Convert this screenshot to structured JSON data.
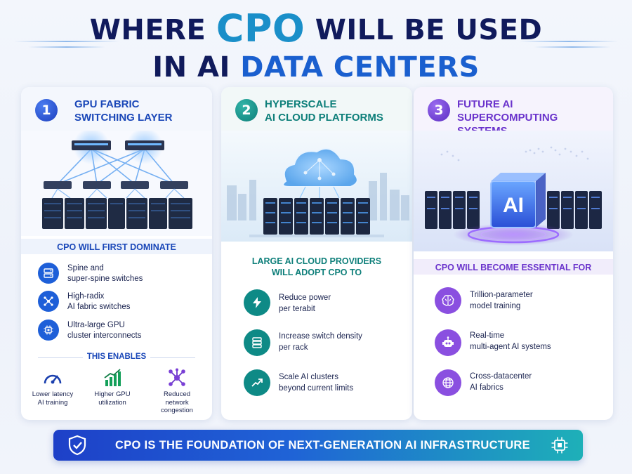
{
  "title": {
    "line1_pre": "WHERE",
    "line1_highlight": "CPO",
    "line1_post": "WILL BE USED",
    "line2_pre": "IN AI",
    "line2_highlight": "DATA CENTERS"
  },
  "colors": {
    "navy": "#101a5c",
    "cpo_teal": "#1a8fc9",
    "blue": "#1a5fcf",
    "teal": "#0e8a86",
    "purple": "#7a3fd6"
  },
  "panels": [
    {
      "number": "1",
      "title_line1": "GPU FABRIC",
      "title_line2": "SWITCHING LAYER",
      "section_title": "CPO WILL FIRST DOMINATE",
      "items": [
        {
          "icon": "server-rack-icon",
          "line1": "Spine and",
          "line2": "super-spine switches"
        },
        {
          "icon": "network-nodes-icon",
          "line1": "High-radix",
          "line2": "AI fabric switches"
        },
        {
          "icon": "chip-icon",
          "line1": "Ultra-large GPU",
          "line2": "cluster interconnects"
        }
      ],
      "enables_title": "THIS ENABLES",
      "enables": [
        {
          "icon": "speedometer-icon",
          "line1": "Lower latency",
          "line2": "AI training",
          "line3": ""
        },
        {
          "icon": "bar-growth-icon",
          "line1": "Higher GPU",
          "line2": "utilization",
          "line3": ""
        },
        {
          "icon": "network-hub-icon",
          "line1": "Reduced",
          "line2": "network",
          "line3": "congestion"
        }
      ]
    },
    {
      "number": "2",
      "title_line1": "HYPERSCALE",
      "title_line2": "AI CLOUD PLATFORMS",
      "section_title_line1": "LARGE AI CLOUD PROVIDERS",
      "section_title_line2": "WILL ADOPT CPO TO",
      "items": [
        {
          "icon": "lightning-icon",
          "line1": "Reduce power",
          "line2": "per terabit"
        },
        {
          "icon": "server-stack-icon",
          "line1": "Increase switch density",
          "line2": "per rack"
        },
        {
          "icon": "trend-up-icon",
          "line1": "Scale AI clusters",
          "line2": "beyond current limits"
        }
      ]
    },
    {
      "number": "3",
      "title_line1": "FUTURE AI",
      "title_line2": "SUPERCOMPUTING SYSTEMS",
      "hero_label": "AI",
      "section_title": "CPO WILL BECOME ESSENTIAL FOR",
      "items": [
        {
          "icon": "brain-icon",
          "line1": "Trillion-parameter",
          "line2": "model training"
        },
        {
          "icon": "robot-icon",
          "line1": "Real-time",
          "line2": "multi-agent AI systems"
        },
        {
          "icon": "globe-icon",
          "line1": "Cross-datacenter",
          "line2": "AI fabrics"
        }
      ]
    }
  ],
  "footer": {
    "text": "CPO IS THE FOUNDATION OF NEXT-GENERATION AI INFRASTRUCTURE",
    "left_icon": "shield-check-icon",
    "right_icon": "chip-icon"
  }
}
